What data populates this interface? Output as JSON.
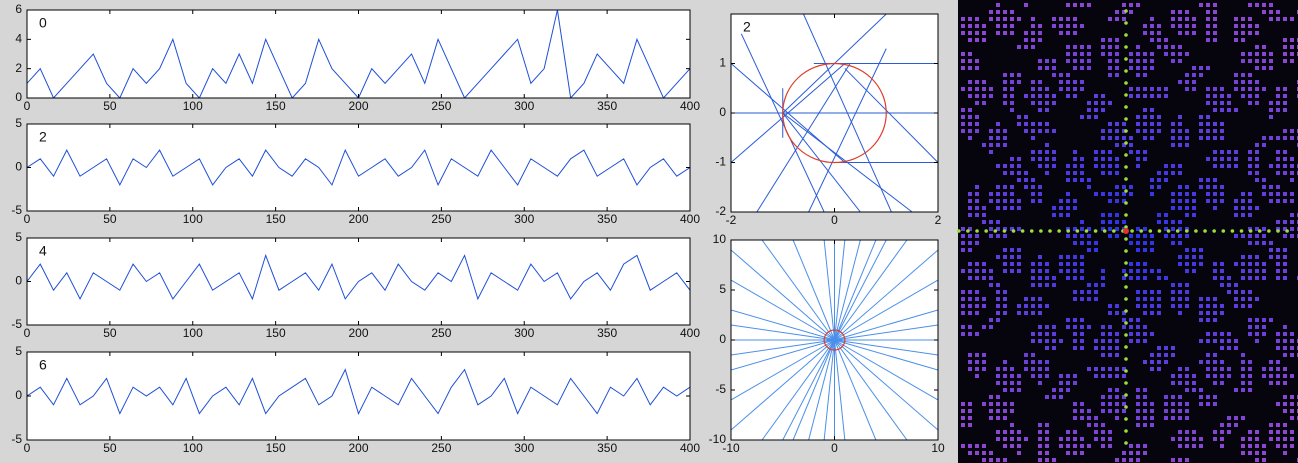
{
  "chart_data": [
    {
      "type": "line",
      "label": "0",
      "color": "#1f4fd8",
      "x": [
        0,
        8,
        16,
        24,
        32,
        40,
        48,
        56,
        64,
        72,
        80,
        88,
        96,
        104,
        112,
        120,
        128,
        136,
        144,
        152,
        160,
        168,
        176,
        184,
        192,
        200,
        208,
        216,
        224,
        232,
        240,
        248,
        256,
        264,
        272,
        280,
        288,
        296,
        304,
        312,
        320,
        328,
        336,
        344,
        352,
        360,
        368,
        376,
        384,
        392,
        400
      ],
      "series": [
        {
          "values": [
            1,
            2,
            0,
            1,
            2,
            3,
            1,
            0,
            2,
            1,
            2,
            4,
            1,
            0,
            2,
            1,
            3,
            1,
            4,
            2,
            0,
            1,
            4,
            2,
            1,
            0,
            2,
            1,
            2,
            3,
            1,
            4,
            2,
            0,
            1,
            2,
            3,
            4,
            1,
            2,
            6,
            0,
            1,
            3,
            2,
            1,
            4,
            2,
            0,
            1,
            2
          ]
        }
      ],
      "xlim": [
        0,
        400
      ],
      "ylim": [
        0,
        6
      ],
      "xticks": [
        0,
        50,
        100,
        150,
        200,
        250,
        300,
        350,
        400
      ],
      "yticks": [
        0,
        2,
        4,
        6
      ]
    },
    {
      "type": "line",
      "label": "2",
      "color": "#1f4fd8",
      "x": [
        0,
        8,
        16,
        24,
        32,
        40,
        48,
        56,
        64,
        72,
        80,
        88,
        96,
        104,
        112,
        120,
        128,
        136,
        144,
        152,
        160,
        168,
        176,
        184,
        192,
        200,
        208,
        216,
        224,
        232,
        240,
        248,
        256,
        264,
        272,
        280,
        288,
        296,
        304,
        312,
        320,
        328,
        336,
        344,
        352,
        360,
        368,
        376,
        384,
        392,
        400
      ],
      "series": [
        {
          "values": [
            0,
            1,
            -1,
            2,
            -1,
            0,
            1,
            -2,
            1,
            0,
            2,
            -1,
            0,
            1,
            -2,
            0,
            1,
            -1,
            2,
            0,
            -1,
            1,
            0,
            -2,
            2,
            -1,
            0,
            1,
            -1,
            0,
            2,
            -2,
            1,
            0,
            -1,
            2,
            0,
            -2,
            1,
            0,
            -1,
            1,
            2,
            -1,
            0,
            1,
            -2,
            0,
            1,
            -1,
            0
          ]
        }
      ],
      "xlim": [
        0,
        400
      ],
      "ylim": [
        -5,
        5
      ],
      "xticks": [
        0,
        50,
        100,
        150,
        200,
        250,
        300,
        350,
        400
      ],
      "yticks": [
        -5,
        0,
        5
      ]
    },
    {
      "type": "line",
      "label": "4",
      "color": "#1f4fd8",
      "x": [
        0,
        8,
        16,
        24,
        32,
        40,
        48,
        56,
        64,
        72,
        80,
        88,
        96,
        104,
        112,
        120,
        128,
        136,
        144,
        152,
        160,
        168,
        176,
        184,
        192,
        200,
        208,
        216,
        224,
        232,
        240,
        248,
        256,
        264,
        272,
        280,
        288,
        296,
        304,
        312,
        320,
        328,
        336,
        344,
        352,
        360,
        368,
        376,
        384,
        392,
        400
      ],
      "series": [
        {
          "values": [
            0,
            2,
            -1,
            1,
            -2,
            1,
            0,
            -1,
            2,
            0,
            1,
            -2,
            0,
            2,
            -1,
            0,
            1,
            -2,
            3,
            -1,
            0,
            1,
            -1,
            2,
            -2,
            0,
            1,
            -1,
            2,
            0,
            -1,
            1,
            0,
            3,
            -2,
            1,
            0,
            -1,
            2,
            0,
            1,
            -2,
            0,
            1,
            -1,
            2,
            3,
            -1,
            0,
            1,
            -1
          ]
        }
      ],
      "xlim": [
        0,
        400
      ],
      "ylim": [
        -5,
        5
      ],
      "xticks": [
        0,
        50,
        100,
        150,
        200,
        250,
        300,
        350,
        400
      ],
      "yticks": [
        -5,
        0,
        5
      ]
    },
    {
      "type": "line",
      "label": "6",
      "color": "#1f4fd8",
      "x": [
        0,
        8,
        16,
        24,
        32,
        40,
        48,
        56,
        64,
        72,
        80,
        88,
        96,
        104,
        112,
        120,
        128,
        136,
        144,
        152,
        160,
        168,
        176,
        184,
        192,
        200,
        208,
        216,
        224,
        232,
        240,
        248,
        256,
        264,
        272,
        280,
        288,
        296,
        304,
        312,
        320,
        328,
        336,
        344,
        352,
        360,
        368,
        376,
        384,
        392,
        400
      ],
      "series": [
        {
          "values": [
            0,
            1,
            -1,
            2,
            -1,
            0,
            2,
            -2,
            1,
            0,
            1,
            -1,
            2,
            -2,
            0,
            1,
            -1,
            2,
            -2,
            0,
            1,
            2,
            -1,
            0,
            3,
            -2,
            1,
            0,
            -1,
            2,
            0,
            -2,
            1,
            3,
            -1,
            0,
            2,
            -2,
            1,
            0,
            -1,
            2,
            0,
            -2,
            1,
            0,
            2,
            -1,
            1,
            0,
            1
          ]
        }
      ],
      "xlim": [
        0,
        400
      ],
      "ylim": [
        -5,
        5
      ],
      "xticks": [
        0,
        50,
        100,
        150,
        200,
        250,
        300,
        350,
        400
      ],
      "yticks": [
        -5,
        0,
        5
      ]
    },
    {
      "type": "line",
      "label": "2",
      "color": "#2a5cd6",
      "series": [
        {
          "x": [
            -2,
            2
          ],
          "values": [
            0,
            0
          ]
        },
        {
          "x": [
            -0.4,
            2
          ],
          "values": [
            1,
            1
          ]
        },
        {
          "x": [
            0,
            2
          ],
          "values": [
            -1,
            -1
          ]
        },
        {
          "x": [
            -1,
            -1
          ],
          "values": [
            0.5,
            -0.5
          ]
        },
        {
          "x": [
            -2,
            0.2
          ],
          "values": [
            1,
            -1
          ]
        },
        {
          "x": [
            -2,
            0.2
          ],
          "values": [
            -1,
            1
          ]
        },
        {
          "x": [
            -1.8,
            -0.2
          ],
          "values": [
            1.6,
            -2
          ]
        },
        {
          "x": [
            -1,
            1
          ],
          "values": [
            0,
            2
          ]
        },
        {
          "x": [
            -1,
            1.5
          ],
          "values": [
            0,
            -2
          ]
        },
        {
          "x": [
            -1,
            0.5
          ],
          "values": [
            0,
            -2
          ]
        },
        {
          "x": [
            -0.6,
            1.1
          ],
          "values": [
            2,
            -2
          ]
        },
        {
          "x": [
            -0.5,
            1
          ],
          "values": [
            -2,
            1.3
          ]
        },
        {
          "x": [
            0.2,
            2
          ],
          "values": [
            0.9,
            -1
          ]
        },
        {
          "x": [
            -1.5,
            0.3
          ],
          "values": [
            -2,
            1
          ]
        }
      ],
      "circle": {
        "center": [
          0,
          0
        ],
        "radius": 1,
        "color": "#e03c28"
      },
      "xlim": [
        -2,
        2
      ],
      "ylim": [
        -2,
        2
      ],
      "xticks": [
        -2,
        0,
        2
      ],
      "yticks": [
        -2,
        -1,
        0,
        1
      ]
    },
    {
      "type": "line",
      "color": "#4a8fea",
      "series": [
        {
          "x": [
            0,
            10
          ],
          "values": [
            0,
            0
          ]
        },
        {
          "x": [
            0,
            10
          ],
          "values": [
            0,
            3
          ]
        },
        {
          "x": [
            0,
            10
          ],
          "values": [
            0,
            6
          ]
        },
        {
          "x": [
            0,
            10
          ],
          "values": [
            0,
            9
          ]
        },
        {
          "x": [
            0,
            7
          ],
          "values": [
            0,
            10
          ]
        },
        {
          "x": [
            0,
            4
          ],
          "values": [
            0,
            10
          ]
        },
        {
          "x": [
            0,
            1
          ],
          "values": [
            0,
            10
          ]
        },
        {
          "x": [
            0,
            0
          ],
          "values": [
            0,
            10
          ]
        },
        {
          "x": [
            0,
            -1
          ],
          "values": [
            0,
            10
          ]
        },
        {
          "x": [
            0,
            -4
          ],
          "values": [
            0,
            10
          ]
        },
        {
          "x": [
            0,
            -7
          ],
          "values": [
            0,
            10
          ]
        },
        {
          "x": [
            0,
            -10
          ],
          "values": [
            0,
            9
          ]
        },
        {
          "x": [
            0,
            -10
          ],
          "values": [
            0,
            6
          ]
        },
        {
          "x": [
            0,
            -10
          ],
          "values": [
            0,
            3
          ]
        },
        {
          "x": [
            0,
            -10
          ],
          "values": [
            0,
            0
          ]
        },
        {
          "x": [
            0,
            -10
          ],
          "values": [
            0,
            -3
          ]
        },
        {
          "x": [
            0,
            -10
          ],
          "values": [
            0,
            -6
          ]
        },
        {
          "x": [
            0,
            -10
          ],
          "values": [
            0,
            -9
          ]
        },
        {
          "x": [
            0,
            -7
          ],
          "values": [
            0,
            -10
          ]
        },
        {
          "x": [
            0,
            -4
          ],
          "values": [
            0,
            -10
          ]
        },
        {
          "x": [
            0,
            -1
          ],
          "values": [
            0,
            -10
          ]
        },
        {
          "x": [
            0,
            0
          ],
          "values": [
            0,
            -10
          ]
        },
        {
          "x": [
            0,
            1
          ],
          "values": [
            0,
            -10
          ]
        },
        {
          "x": [
            0,
            4
          ],
          "values": [
            0,
            -10
          ]
        },
        {
          "x": [
            0,
            7
          ],
          "values": [
            0,
            -10
          ]
        },
        {
          "x": [
            0,
            10
          ],
          "values": [
            0,
            -9
          ]
        },
        {
          "x": [
            0,
            10
          ],
          "values": [
            0,
            -6
          ]
        },
        {
          "x": [
            0,
            10
          ],
          "values": [
            0,
            -3
          ]
        },
        {
          "x": [
            0,
            10
          ],
          "values": [
            0,
            1.5
          ]
        },
        {
          "x": [
            0,
            10
          ],
          "values": [
            0,
            -1.5
          ]
        },
        {
          "x": [
            0,
            -10
          ],
          "values": [
            0,
            1.5
          ]
        },
        {
          "x": [
            0,
            -10
          ],
          "values": [
            0,
            -1.5
          ]
        },
        {
          "x": [
            0,
            5
          ],
          "values": [
            0,
            10
          ]
        },
        {
          "x": [
            0,
            -5
          ],
          "values": [
            0,
            -10
          ]
        },
        {
          "x": [
            0,
            2.5
          ],
          "values": [
            0,
            10
          ]
        },
        {
          "x": [
            0,
            -2.5
          ],
          "values": [
            0,
            -10
          ]
        }
      ],
      "circle": {
        "center": [
          0,
          0
        ],
        "radius": 1,
        "color": "#e03c28"
      },
      "xlim": [
        -10,
        10
      ],
      "ylim": [
        -10,
        10
      ],
      "xticks": [
        -10,
        0,
        10
      ],
      "yticks": [
        -10,
        -5,
        0,
        5,
        10
      ]
    }
  ]
}
